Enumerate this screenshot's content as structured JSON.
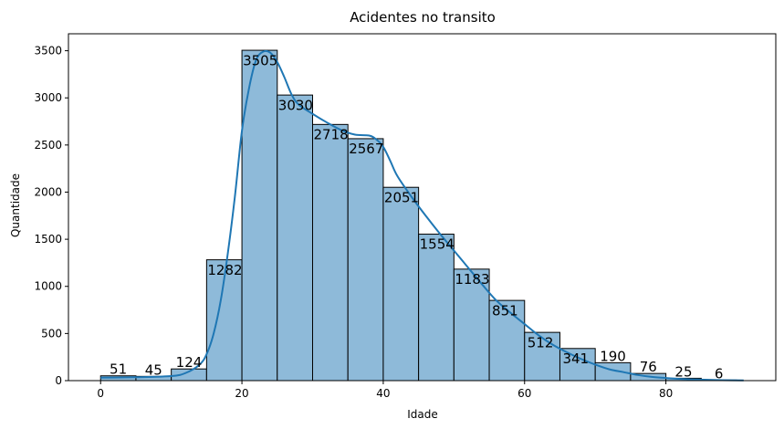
{
  "chart_data": {
    "type": "bar",
    "title": "Acidentes no transito",
    "xlabel": "Idade",
    "ylabel": "Quantidade",
    "bins": [
      {
        "start": 0,
        "end": 5,
        "value": 51
      },
      {
        "start": 5,
        "end": 10,
        "value": 45
      },
      {
        "start": 10,
        "end": 15,
        "value": 124
      },
      {
        "start": 15,
        "end": 20,
        "value": 1282
      },
      {
        "start": 20,
        "end": 25,
        "value": 3505
      },
      {
        "start": 25,
        "end": 30,
        "value": 3030
      },
      {
        "start": 30,
        "end": 35,
        "value": 2718
      },
      {
        "start": 35,
        "end": 40,
        "value": 2567
      },
      {
        "start": 40,
        "end": 45,
        "value": 2051
      },
      {
        "start": 45,
        "end": 50,
        "value": 1554
      },
      {
        "start": 50,
        "end": 55,
        "value": 1183
      },
      {
        "start": 55,
        "end": 60,
        "value": 851
      },
      {
        "start": 60,
        "end": 65,
        "value": 512
      },
      {
        "start": 65,
        "end": 70,
        "value": 341
      },
      {
        "start": 70,
        "end": 75,
        "value": 190
      },
      {
        "start": 75,
        "end": 80,
        "value": 76
      },
      {
        "start": 80,
        "end": 85,
        "value": 25
      },
      {
        "start": 85,
        "end": 90,
        "value": 6
      }
    ],
    "kde_curve": {
      "x": [
        0,
        5,
        10,
        12,
        14,
        15,
        16,
        17,
        18,
        19,
        20,
        21,
        22,
        23,
        24,
        25,
        26,
        27,
        28,
        30,
        32,
        34,
        36,
        38,
        39,
        40,
        41,
        42,
        44,
        46,
        48,
        50,
        52,
        54,
        56,
        58,
        60,
        62,
        64,
        66,
        68,
        70,
        72,
        74,
        76,
        78,
        80,
        82,
        84,
        86,
        88,
        91
      ],
      "y": [
        31,
        36,
        48,
        80,
        170,
        280,
        500,
        850,
        1350,
        1950,
        2650,
        3100,
        3400,
        3490,
        3480,
        3380,
        3220,
        3040,
        2930,
        2830,
        2740,
        2660,
        2610,
        2600,
        2560,
        2480,
        2330,
        2170,
        1950,
        1750,
        1560,
        1380,
        1200,
        1020,
        850,
        720,
        600,
        480,
        380,
        300,
        230,
        170,
        120,
        90,
        60,
        40,
        28,
        18,
        12,
        8,
        5,
        3
      ]
    },
    "xlim": [
      -4.55,
      95.55
    ],
    "ylim": [
      0,
      3680
    ],
    "xticks": [
      0,
      20,
      40,
      60,
      80
    ],
    "yticks": [
      0,
      500,
      1000,
      1500,
      2000,
      2500,
      3000,
      3500
    ],
    "grid": false,
    "colors": {
      "bar_fill": "#8ebad9",
      "bar_edge": "#000000",
      "kde_line": "#1f77b4"
    }
  }
}
